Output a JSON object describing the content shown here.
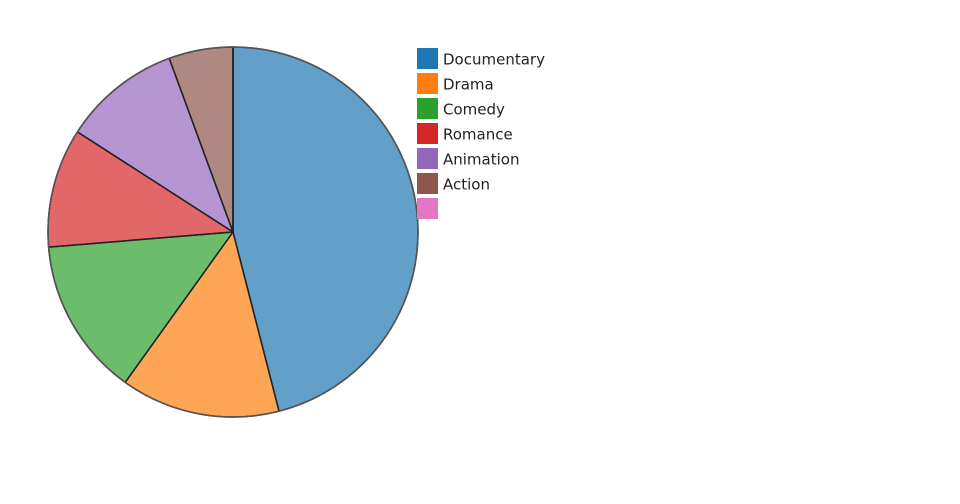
{
  "chart_data": {
    "type": "pie",
    "categories": [
      "Documentary",
      "Drama",
      "Comedy",
      "Romance",
      "Animation",
      "Action",
      null
    ],
    "values": [
      46,
      13.9,
      13.8,
      10.4,
      10.3,
      5.6,
      0
    ],
    "colors": [
      "#1f77b4",
      "#ff7f0e",
      "#2ca02c",
      "#d62728",
      "#9467bd",
      "#8c564b",
      "#e377c2"
    ],
    "legend": "right"
  }
}
